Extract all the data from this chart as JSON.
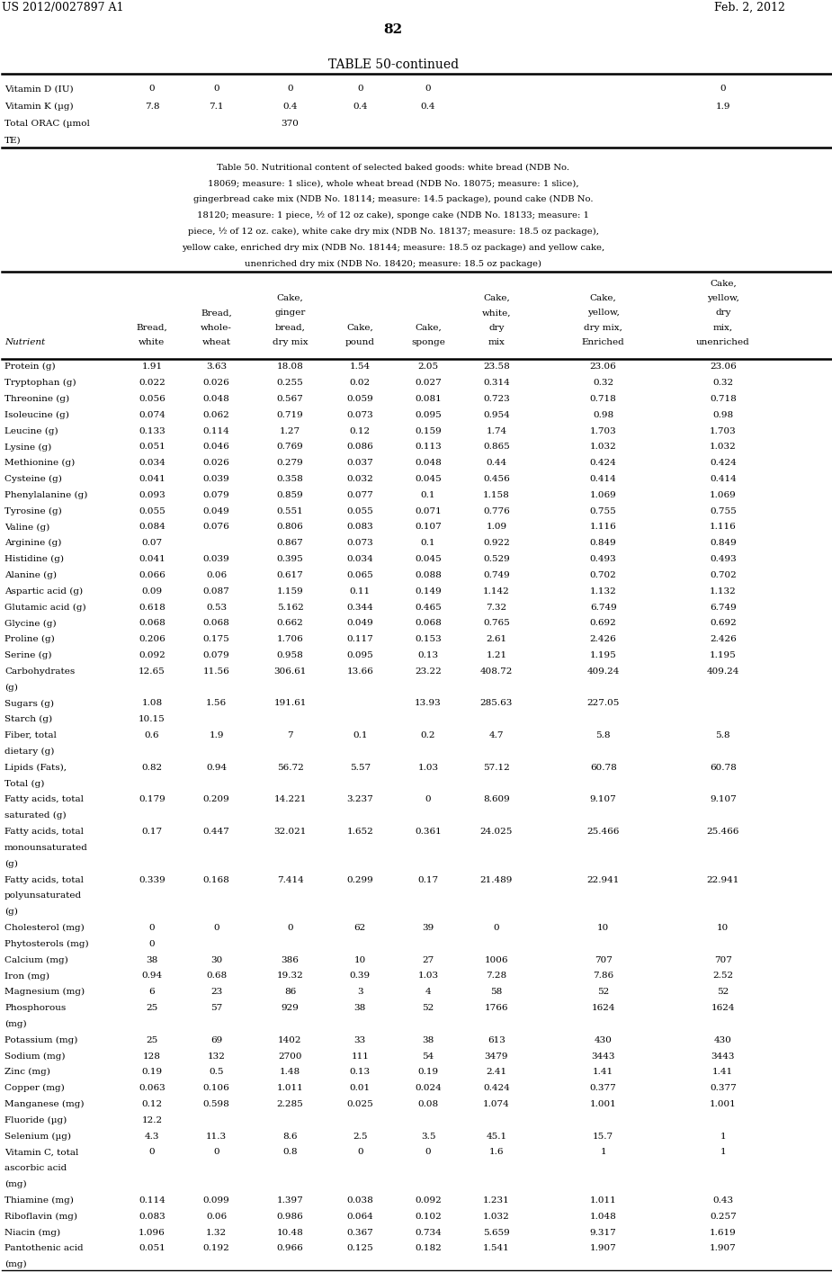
{
  "page_number": "82",
  "header_left": "US 2012/0027897 A1",
  "header_right": "Feb. 2, 2012",
  "table_title": "TABLE 50-continued",
  "caption_lines": [
    "Table 50. Nutritional content of selected baked goods: white bread (NDB No.",
    "18069; measure: 1 slice), whole wheat bread (NDB No. 18075; measure: 1 slice),",
    "gingerbread cake mix (NDB No. 18114; measure: 14.5 package), pound cake (NDB No.",
    "18120; measure: 1 piece, ½ of 12 oz cake), sponge cake (NDB No. 18133; measure: 1",
    "piece, ½ of 12 oz. cake), white cake dry mix (NDB No. 18137; measure: 18.5 oz package),",
    "yellow cake, enriched dry mix (NDB No. 18144; measure: 18.5 oz package) and yellow cake,",
    "unenriched dry mix (NDB No. 18420; measure: 18.5 oz package)"
  ],
  "col_headers": [
    "Nutrient",
    "Bread,\nwhite",
    "Bread,\nwhole-\nwheat",
    "Cake,\nginger\nbread,\ndry mix",
    "Cake,\npound",
    "Cake,\nsponge",
    "Cake,\nwhite,\ndry\nmix",
    "Cake,\nyellow,\ndry mix,\nEnriched",
    "Cake,\nyellow,\ndry\nmix,\nunenriched"
  ],
  "top_rows": [
    [
      "Vitamin D (IU)",
      "0",
      "0",
      "0",
      "0",
      "0",
      "",
      "",
      "0"
    ],
    [
      "Vitamin K (µg)",
      "7.8",
      "7.1",
      "0.4",
      "0.4",
      "0.4",
      "",
      "",
      "1.9"
    ],
    [
      "Total ORAC (µmol",
      "",
      "",
      "370",
      "",
      "",
      "",
      "",
      ""
    ],
    [
      "TE)",
      "",
      "",
      "",
      "",
      "",
      "",
      "",
      ""
    ]
  ],
  "data_rows": [
    [
      "Protein (g)",
      "1.91",
      "3.63",
      "18.08",
      "1.54",
      "2.05",
      "23.58",
      "23.06",
      "23.06"
    ],
    [
      "Tryptophan (g)",
      "0.022",
      "0.026",
      "0.255",
      "0.02",
      "0.027",
      "0.314",
      "0.32",
      "0.32"
    ],
    [
      "Threonine (g)",
      "0.056",
      "0.048",
      "0.567",
      "0.059",
      "0.081",
      "0.723",
      "0.718",
      "0.718"
    ],
    [
      "Isoleucine (g)",
      "0.074",
      "0.062",
      "0.719",
      "0.073",
      "0.095",
      "0.954",
      "0.98",
      "0.98"
    ],
    [
      "Leucine (g)",
      "0.133",
      "0.114",
      "1.27",
      "0.12",
      "0.159",
      "1.74",
      "1.703",
      "1.703"
    ],
    [
      "Lysine (g)",
      "0.051",
      "0.046",
      "0.769",
      "0.086",
      "0.113",
      "0.865",
      "1.032",
      "1.032"
    ],
    [
      "Methionine (g)",
      "0.034",
      "0.026",
      "0.279",
      "0.037",
      "0.048",
      "0.44",
      "0.424",
      "0.424"
    ],
    [
      "Cysteine (g)",
      "0.041",
      "0.039",
      "0.358",
      "0.032",
      "0.045",
      "0.456",
      "0.414",
      "0.414"
    ],
    [
      "Phenylalanine (g)",
      "0.093",
      "0.079",
      "0.859",
      "0.077",
      "0.1",
      "1.158",
      "1.069",
      "1.069"
    ],
    [
      "Tyrosine (g)",
      "0.055",
      "0.049",
      "0.551",
      "0.055",
      "0.071",
      "0.776",
      "0.755",
      "0.755"
    ],
    [
      "Valine (g)",
      "0.084",
      "0.076",
      "0.806",
      "0.083",
      "0.107",
      "1.09",
      "1.116",
      "1.116"
    ],
    [
      "Arginine (g)",
      "0.07",
      "",
      "0.867",
      "0.073",
      "0.1",
      "0.922",
      "0.849",
      "0.849"
    ],
    [
      "Histidine (g)",
      "0.041",
      "0.039",
      "0.395",
      "0.034",
      "0.045",
      "0.529",
      "0.493",
      "0.493"
    ],
    [
      "Alanine (g)",
      "0.066",
      "0.06",
      "0.617",
      "0.065",
      "0.088",
      "0.749",
      "0.702",
      "0.702"
    ],
    [
      "Aspartic acid (g)",
      "0.09",
      "0.087",
      "1.159",
      "0.11",
      "0.149",
      "1.142",
      "1.132",
      "1.132"
    ],
    [
      "Glutamic acid (g)",
      "0.618",
      "0.53",
      "5.162",
      "0.344",
      "0.465",
      "7.32",
      "6.749",
      "6.749"
    ],
    [
      "Glycine (g)",
      "0.068",
      "0.068",
      "0.662",
      "0.049",
      "0.068",
      "0.765",
      "0.692",
      "0.692"
    ],
    [
      "Proline (g)",
      "0.206",
      "0.175",
      "1.706",
      "0.117",
      "0.153",
      "2.61",
      "2.426",
      "2.426"
    ],
    [
      "Serine (g)",
      "0.092",
      "0.079",
      "0.958",
      "0.095",
      "0.13",
      "1.21",
      "1.195",
      "1.195"
    ],
    [
      "Carbohydrates",
      "12.65",
      "11.56",
      "306.61",
      "13.66",
      "23.22",
      "408.72",
      "409.24",
      "409.24"
    ],
    [
      "(g)",
      "",
      "",
      "",
      "",
      "",
      "",
      "",
      ""
    ],
    [
      "Sugars (g)",
      "1.08",
      "1.56",
      "191.61",
      "",
      "13.93",
      "285.63",
      "227.05",
      ""
    ],
    [
      "Starch (g)",
      "10.15",
      "",
      "",
      "",
      "",
      "",
      "",
      ""
    ],
    [
      "Fiber, total",
      "0.6",
      "1.9",
      "7",
      "0.1",
      "0.2",
      "4.7",
      "5.8",
      "5.8"
    ],
    [
      "dietary (g)",
      "",
      "",
      "",
      "",
      "",
      "",
      "",
      ""
    ],
    [
      "Lipids (Fats),",
      "0.82",
      "0.94",
      "56.72",
      "5.57",
      "1.03",
      "57.12",
      "60.78",
      "60.78"
    ],
    [
      "Total (g)",
      "",
      "",
      "",
      "",
      "",
      "",
      "",
      ""
    ],
    [
      "Fatty acids, total",
      "0.179",
      "0.209",
      "14.221",
      "3.237",
      "0",
      "8.609",
      "9.107",
      "9.107"
    ],
    [
      "saturated (g)",
      "",
      "",
      "",
      "",
      "",
      "",
      "",
      ""
    ],
    [
      "Fatty acids, total",
      "0.17",
      "0.447",
      "32.021",
      "1.652",
      "0.361",
      "24.025",
      "25.466",
      "25.466"
    ],
    [
      "monounsaturated",
      "",
      "",
      "",
      "",
      "",
      "",
      "",
      ""
    ],
    [
      "(g)",
      "",
      "",
      "",
      "",
      "",
      "",
      "",
      ""
    ],
    [
      "Fatty acids, total",
      "0.339",
      "0.168",
      "7.414",
      "0.299",
      "0.17",
      "21.489",
      "22.941",
      "22.941"
    ],
    [
      "polyunsaturated",
      "",
      "",
      "",
      "",
      "",
      "",
      "",
      ""
    ],
    [
      "(g)",
      "",
      "",
      "",
      "",
      "",
      "",
      "",
      ""
    ],
    [
      "Cholesterol (mg)",
      "0",
      "0",
      "0",
      "62",
      "39",
      "0",
      "10",
      "10"
    ],
    [
      "Phytosterols (mg)",
      "0",
      "",
      "",
      "",
      "",
      "",
      "",
      ""
    ],
    [
      "Calcium (mg)",
      "38",
      "30",
      "386",
      "10",
      "27",
      "1006",
      "707",
      "707"
    ],
    [
      "Iron (mg)",
      "0.94",
      "0.68",
      "19.32",
      "0.39",
      "1.03",
      "7.28",
      "7.86",
      "2.52"
    ],
    [
      "Magnesium (mg)",
      "6",
      "23",
      "86",
      "3",
      "4",
      "58",
      "52",
      "52"
    ],
    [
      "Phosphorous",
      "25",
      "57",
      "929",
      "38",
      "52",
      "1766",
      "1624",
      "1624"
    ],
    [
      "(mg)",
      "",
      "",
      "",
      "",
      "",
      "",
      "",
      ""
    ],
    [
      "Potassium (mg)",
      "25",
      "69",
      "1402",
      "33",
      "38",
      "613",
      "430",
      "430"
    ],
    [
      "Sodium (mg)",
      "128",
      "132",
      "2700",
      "111",
      "54",
      "3479",
      "3443",
      "3443"
    ],
    [
      "Zinc (mg)",
      "0.19",
      "0.5",
      "1.48",
      "0.13",
      "0.19",
      "2.41",
      "1.41",
      "1.41"
    ],
    [
      "Copper (mg)",
      "0.063",
      "0.106",
      "1.011",
      "0.01",
      "0.024",
      "0.424",
      "0.377",
      "0.377"
    ],
    [
      "Manganese (mg)",
      "0.12",
      "0.598",
      "2.285",
      "0.025",
      "0.08",
      "1.074",
      "1.001",
      "1.001"
    ],
    [
      "Fluoride (µg)",
      "12.2",
      "",
      "",
      "",
      "",
      "",
      "",
      ""
    ],
    [
      "Selenium (µg)",
      "4.3",
      "11.3",
      "8.6",
      "2.5",
      "3.5",
      "45.1",
      "15.7",
      "1"
    ],
    [
      "Vitamin C, total",
      "0",
      "0",
      "0.8",
      "0",
      "0",
      "1.6",
      "1",
      "1"
    ],
    [
      "ascorbic acid",
      "",
      "",
      "",
      "",
      "",
      "",
      "",
      ""
    ],
    [
      "(mg)",
      "",
      "",
      "",
      "",
      "",
      "",
      "",
      ""
    ],
    [
      "Thiamine (mg)",
      "0.114",
      "0.099",
      "1.397",
      "0.038",
      "0.092",
      "1.231",
      "1.011",
      "0.43"
    ],
    [
      "Riboflavin (mg)",
      "0.083",
      "0.06",
      "0.986",
      "0.064",
      "0.102",
      "1.032",
      "1.048",
      "0.257"
    ],
    [
      "Niacin (mg)",
      "1.096",
      "1.32",
      "10.48",
      "0.367",
      "0.734",
      "5.659",
      "9.317",
      "1.619"
    ],
    [
      "Pantothenic acid",
      "0.051",
      "0.192",
      "0.966",
      "0.125",
      "0.182",
      "1.541",
      "1.907",
      "1.907"
    ],
    [
      "(mg)",
      "",
      "",
      "",
      "",
      "",
      "",
      "",
      ""
    ]
  ]
}
